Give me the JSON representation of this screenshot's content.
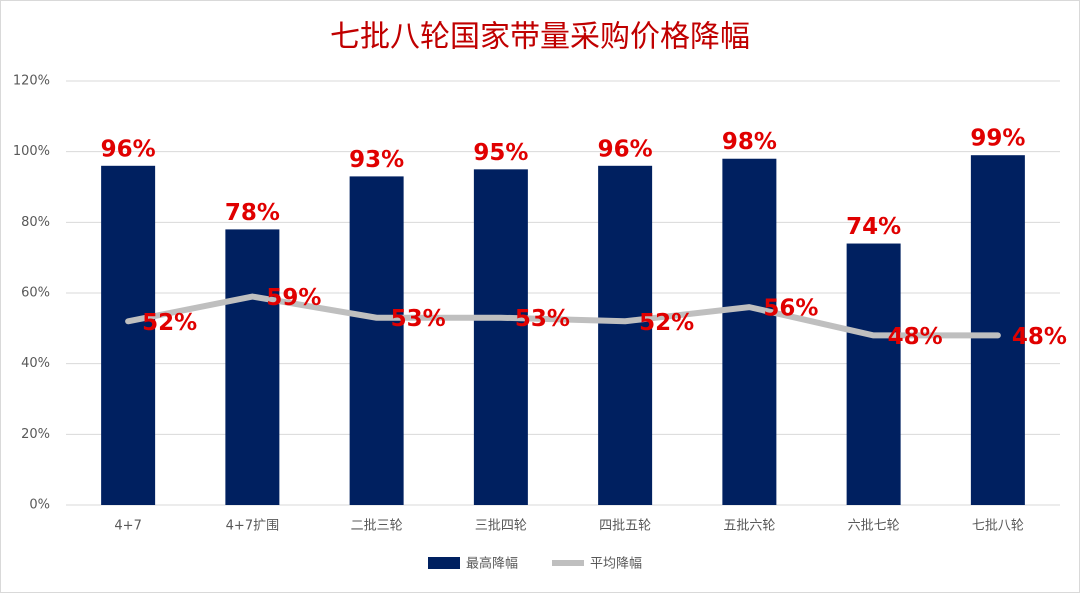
{
  "chart_data": {
    "type": "bar",
    "title": "七批八轮国家带量采购价格降幅",
    "categories": [
      "4+7",
      "4+7扩围",
      "二批三轮",
      "三批四轮",
      "四批五轮",
      "五批六轮",
      "六批七轮",
      "七批八轮"
    ],
    "series": [
      {
        "name": "最高降幅",
        "type": "bar",
        "color": "#002060",
        "values": [
          96,
          78,
          93,
          95,
          96,
          98,
          74,
          99
        ],
        "value_labels": [
          "96%",
          "78%",
          "93%",
          "95%",
          "96%",
          "98%",
          "74%",
          "99%"
        ]
      },
      {
        "name": "平均降幅",
        "type": "line",
        "color": "#bfbfbf",
        "values": [
          52,
          59,
          53,
          53,
          52,
          56,
          48,
          48
        ],
        "value_labels": [
          "52%",
          "59%",
          "53%",
          "53%",
          "52%",
          "56%",
          "48%",
          "48%"
        ]
      }
    ],
    "label_color": "#e00000",
    "ylim": [
      0,
      120
    ],
    "yticks": [
      {
        "value": 0,
        "label": "0%"
      },
      {
        "value": 20,
        "label": "20%"
      },
      {
        "value": 40,
        "label": "40%"
      },
      {
        "value": 60,
        "label": "60%"
      },
      {
        "value": 80,
        "label": "80%"
      },
      {
        "value": 100,
        "label": "100%"
      },
      {
        "value": 120,
        "label": "120%"
      }
    ],
    "grid": true,
    "legend": "bottom"
  }
}
